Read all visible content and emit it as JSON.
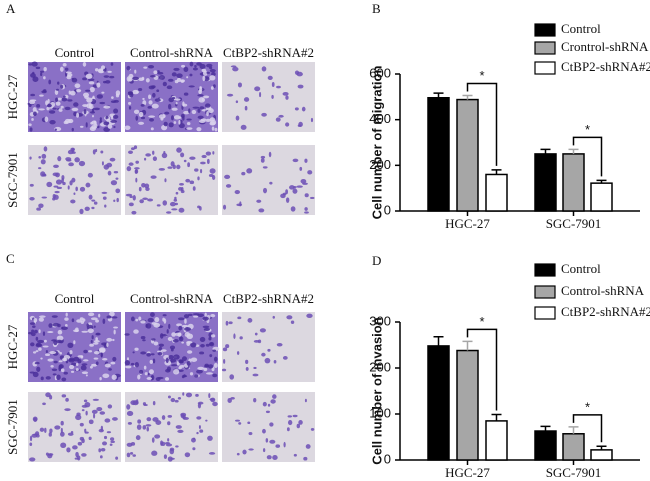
{
  "image_panels": [
    {
      "panel": "A",
      "columns": [
        "Control",
        "Control-shRNA",
        "CtBP2-shRNA#2"
      ],
      "rows": [
        "HGC-27",
        "SGC-7901"
      ]
    },
    {
      "panel": "C",
      "columns": [
        "Control",
        "Control-shRNA",
        "CtBP2-shRNA#2"
      ],
      "rows": [
        "HGC-27",
        "SGC-7901"
      ]
    }
  ],
  "chart_data": [
    {
      "type": "bar",
      "panel": "B",
      "y_label": "Cell number of migration",
      "categories": [
        "HGC-27",
        "SGC-7901"
      ],
      "series": [
        {
          "name": "Control",
          "color": "#000000",
          "values": [
            496,
            250
          ],
          "errors": [
            20,
            20
          ]
        },
        {
          "name": "Crontrol-shRNA",
          "color": "#a6a6a6",
          "values": [
            488,
            250
          ],
          "errors": [
            18,
            20
          ]
        },
        {
          "name": "CtBP2-shRNA#2",
          "color": "#ffffff",
          "values": [
            160,
            122
          ],
          "errors": [
            20,
            12
          ]
        }
      ],
      "ylim": [
        0,
        600
      ],
      "yticks": [
        0,
        200,
        400,
        600
      ],
      "annotations": [
        "*",
        "*"
      ]
    },
    {
      "type": "bar",
      "panel": "D",
      "y_label": "Cell number of invasion",
      "categories": [
        "HGC-27",
        "SGC-7901"
      ],
      "series": [
        {
          "name": "Control",
          "color": "#000000",
          "values": [
            248,
            63
          ],
          "errors": [
            20,
            10
          ]
        },
        {
          "name": "Control-shRNA",
          "color": "#a6a6a6",
          "values": [
            238,
            57
          ],
          "errors": [
            20,
            15
          ]
        },
        {
          "name": "CtBP2-shRNA#2",
          "color": "#ffffff",
          "values": [
            85,
            22
          ],
          "errors": [
            14,
            8
          ]
        }
      ],
      "ylim": [
        0,
        300
      ],
      "yticks": [
        0,
        100,
        200,
        300
      ],
      "annotations": [
        "*",
        "*"
      ]
    }
  ]
}
